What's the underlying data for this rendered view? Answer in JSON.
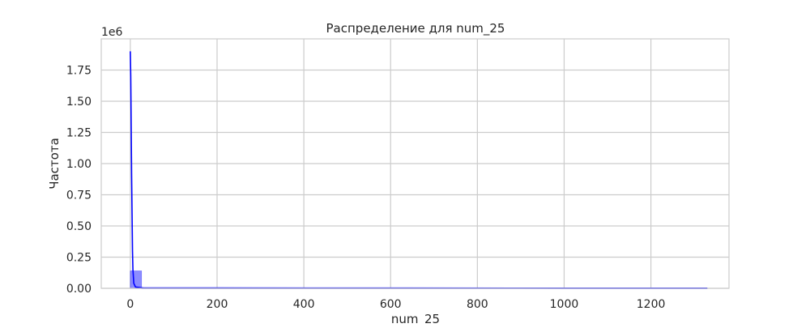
{
  "chart_data": {
    "type": "bar",
    "title": "Распределение для num_25",
    "xlabel": "num_25",
    "ylabel": "Частота",
    "y_offset_label": "1e6",
    "y_scale": 1000000,
    "xlim": [
      -67,
      1380
    ],
    "ylim": [
      0,
      2000000
    ],
    "x_ticks": [
      0,
      200,
      400,
      600,
      800,
      1000,
      1200
    ],
    "x_tick_labels": [
      "0",
      "200",
      "400",
      "600",
      "800",
      "1000",
      "1200"
    ],
    "y_ticks": [
      0,
      250000,
      500000,
      750000,
      1000000,
      1250000,
      1500000,
      1750000
    ],
    "y_tick_labels": [
      "0.00",
      "0.25",
      "0.50",
      "0.75",
      "1.00",
      "1.25",
      "1.50",
      "1.75"
    ],
    "grid": true,
    "series": [
      {
        "kind": "histogram",
        "color": "#0000ff",
        "bins": [
          {
            "x0": 0,
            "x1": 26,
            "count": 140000
          },
          {
            "x0": 26,
            "x1": 1330,
            "count": 3000
          }
        ]
      },
      {
        "kind": "kde",
        "color": "#0000ff",
        "points": [
          [
            0,
            1900000
          ],
          [
            1,
            1700000
          ],
          [
            2,
            1300000
          ],
          [
            3,
            900000
          ],
          [
            4,
            600000
          ],
          [
            5,
            300000
          ],
          [
            6,
            150000
          ],
          [
            8,
            40000
          ],
          [
            12,
            10000
          ],
          [
            30,
            3000
          ],
          [
            200,
            3000
          ],
          [
            600,
            2000
          ],
          [
            1000,
            1500
          ],
          [
            1330,
            1000
          ]
        ]
      }
    ]
  }
}
